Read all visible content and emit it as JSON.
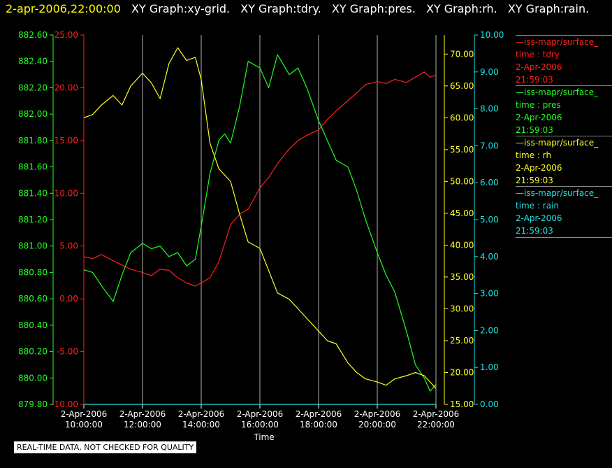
{
  "header": {
    "timestamp": "2-apr-2006,22:00:00",
    "graphs": [
      "XY Graph:xy-grid.",
      "XY Graph:tdry.",
      "XY Graph:pres.",
      "XY Graph:rh.",
      "XY Graph:rain."
    ]
  },
  "colors": {
    "tdry": "#ff2020",
    "pres": "#20ff20",
    "rh": "#ffff20",
    "rain": "#20e0e0",
    "grid": "#b0b0b0",
    "timestamp": "#ffff00"
  },
  "legend": [
    {
      "source": "—iss-mapr/surface_",
      "var": "time : tdry",
      "date": "2-Apr-2006",
      "time": "21:59:03"
    },
    {
      "source": "—iss-mapr/surface_",
      "var": "time : pres",
      "date": "2-Apr-2006",
      "time": "21:59:03"
    },
    {
      "source": "—iss-mapr/surface_",
      "var": "time : rh",
      "date": "2-Apr-2006",
      "time": "21:59:03"
    },
    {
      "source": "—iss-mapr/surface_",
      "var": "time : rain",
      "date": "2-Apr-2006",
      "time": "21:59:03"
    }
  ],
  "disclaimer": "REAL-TIME DATA, NOT CHECKED FOR QUALITY",
  "chart_data": {
    "type": "line",
    "xlabel": "Time",
    "xlim": [
      10,
      22
    ],
    "x_tick_labels": [
      {
        "date": "2-Apr-2006",
        "time": "10:00:00"
      },
      {
        "date": "2-Apr-2006",
        "time": "12:00:00"
      },
      {
        "date": "2-Apr-2006",
        "time": "14:00:00"
      },
      {
        "date": "2-Apr-2006",
        "time": "16:00:00"
      },
      {
        "date": "2-Apr-2006",
        "time": "18:00:00"
      },
      {
        "date": "2-Apr-2006",
        "time": "20:00:00"
      },
      {
        "date": "2-Apr-2006",
        "time": "22:00:00"
      }
    ],
    "axes": {
      "tdry": {
        "range": [
          -10,
          25
        ],
        "ticks": [
          "-10.00",
          "-5.00",
          "0.00",
          "5.00",
          "10.00",
          "15.00",
          "20.00",
          "25.00"
        ]
      },
      "pres": {
        "range": [
          879.8,
          882.6
        ],
        "ticks": [
          "879.80",
          "880.00",
          "880.20",
          "880.40",
          "880.60",
          "880.80",
          "881.00",
          "881.20",
          "881.40",
          "881.60",
          "881.80",
          "882.00",
          "882.20",
          "882.40",
          "882.60"
        ]
      },
      "rh": {
        "range": [
          15,
          73
        ],
        "ticks": [
          "15.00",
          "20.00",
          "25.00",
          "30.00",
          "35.00",
          "40.00",
          "45.00",
          "50.00",
          "55.00",
          "60.00",
          "65.00",
          "70.00"
        ]
      },
      "rain": {
        "range": [
          0,
          10
        ],
        "ticks": [
          "0.00",
          "1.00",
          "2.00",
          "3.00",
          "4.00",
          "5.00",
          "6.00",
          "7.00",
          "8.00",
          "9.00",
          "10.00"
        ]
      }
    },
    "series": [
      {
        "name": "tdry",
        "x": [
          10,
          10.3,
          10.6,
          11,
          11.3,
          11.6,
          12,
          12.3,
          12.6,
          12.9,
          13.2,
          13.5,
          13.8,
          14,
          14.3,
          14.6,
          15,
          15.3,
          15.6,
          16,
          16.3,
          16.6,
          17,
          17.3,
          17.6,
          18,
          18.3,
          18.6,
          19,
          19.3,
          19.6,
          20,
          20.3,
          20.6,
          21,
          21.3,
          21.6,
          21.8,
          22
        ],
        "y": [
          4.0,
          3.8,
          4.2,
          3.6,
          3.2,
          2.8,
          2.5,
          2.2,
          2.8,
          2.7,
          2.0,
          1.5,
          1.2,
          1.5,
          2.0,
          3.5,
          7.0,
          8.0,
          8.5,
          10.5,
          11.5,
          12.8,
          14.2,
          15.0,
          15.5,
          16.0,
          17.0,
          17.8,
          18.8,
          19.5,
          20.3,
          20.6,
          20.4,
          20.8,
          20.5,
          21.0,
          21.5,
          21.0,
          21.2
        ]
      },
      {
        "name": "pres",
        "x": [
          10,
          10.3,
          10.6,
          11,
          11.3,
          11.6,
          12,
          12.3,
          12.6,
          12.9,
          13.2,
          13.5,
          13.8,
          14,
          14.3,
          14.6,
          14.8,
          15,
          15.3,
          15.6,
          16,
          16.3,
          16.6,
          17,
          17.3,
          17.6,
          18,
          18.3,
          18.6,
          19,
          19.3,
          19.6,
          20,
          20.3,
          20.6,
          21,
          21.3,
          21.6,
          21.8,
          22
        ],
        "y": [
          880.82,
          880.8,
          880.7,
          880.58,
          880.78,
          880.95,
          881.02,
          880.98,
          881.0,
          880.92,
          880.95,
          880.85,
          880.9,
          881.15,
          881.55,
          881.8,
          881.85,
          881.78,
          882.05,
          882.4,
          882.35,
          882.2,
          882.45,
          882.3,
          882.35,
          882.2,
          881.95,
          881.8,
          881.65,
          881.6,
          881.42,
          881.2,
          880.95,
          880.78,
          880.65,
          880.35,
          880.1,
          880.0,
          879.9,
          879.95
        ]
      },
      {
        "name": "rh",
        "x": [
          10,
          10.3,
          10.6,
          11,
          11.3,
          11.6,
          12,
          12.3,
          12.6,
          12.9,
          13.2,
          13.5,
          13.8,
          14,
          14.3,
          14.6,
          15,
          15.3,
          15.6,
          16,
          16.3,
          16.6,
          17,
          17.3,
          17.6,
          18,
          18.3,
          18.6,
          19,
          19.3,
          19.6,
          20,
          20.3,
          20.6,
          21,
          21.3,
          21.6,
          22
        ],
        "y": [
          60.0,
          60.5,
          62.0,
          63.5,
          62.0,
          65.0,
          67.0,
          65.5,
          63.0,
          68.5,
          71.0,
          69.0,
          69.5,
          66.0,
          56.0,
          52.0,
          50.0,
          45.0,
          40.5,
          39.5,
          36.0,
          32.5,
          31.5,
          30.0,
          28.5,
          26.5,
          25.0,
          24.5,
          21.5,
          20.0,
          19.0,
          18.5,
          18.0,
          19.0,
          19.5,
          20.0,
          19.5,
          17.5
        ]
      },
      {
        "name": "rain",
        "x": [
          10,
          22
        ],
        "y": [
          0.0,
          0.0
        ]
      }
    ]
  }
}
